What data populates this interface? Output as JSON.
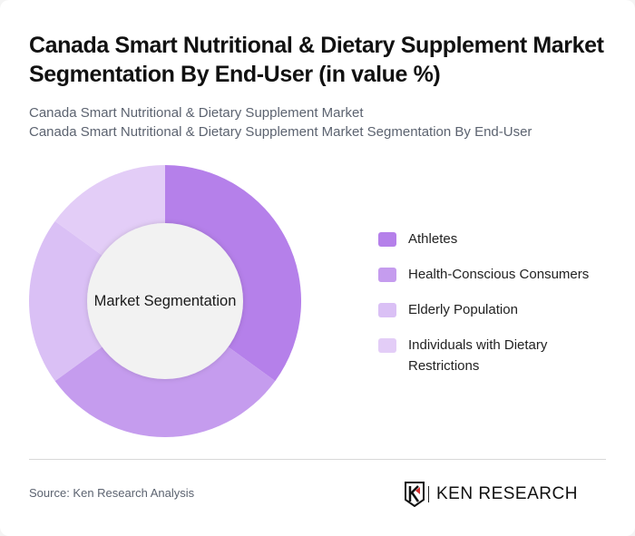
{
  "title": "Canada Smart Nutritional & Dietary Supplement Market Segmentation By End-User (in value %)",
  "subtitle": {
    "line1": "Canada Smart Nutritional & Dietary Supplement Market",
    "line2": "Canada Smart Nutritional & Dietary Supplement Market Segmentation By End-User"
  },
  "center_label": "Market Segmentation",
  "legend": [
    {
      "label": "Athletes",
      "color": "#b580ea"
    },
    {
      "label": "Health-Conscious Consumers",
      "color": "#c59cee"
    },
    {
      "label": "Elderly Population",
      "color": "#dac0f5"
    },
    {
      "label": "Individuals with Dietary Restrictions",
      "color": "#e3cdf7"
    }
  ],
  "footer": {
    "source": "Source: Ken Research Analysis",
    "logo_text": "KEN RESEARCH"
  },
  "chart_data": {
    "type": "pie",
    "variant": "donut",
    "title": "Canada Smart Nutritional & Dietary Supplement Market Segmentation By End-User (in value %)",
    "center_label": "Market Segmentation",
    "categories": [
      "Athletes",
      "Health-Conscious Consumers",
      "Elderly Population",
      "Individuals with Dietary Restrictions"
    ],
    "values": [
      35,
      30,
      20,
      15
    ],
    "colors": [
      "#b580ea",
      "#c59cee",
      "#dac0f5",
      "#e3cdf7"
    ],
    "unit": "%",
    "legend_position": "right",
    "start_angle": "top, clockwise"
  }
}
